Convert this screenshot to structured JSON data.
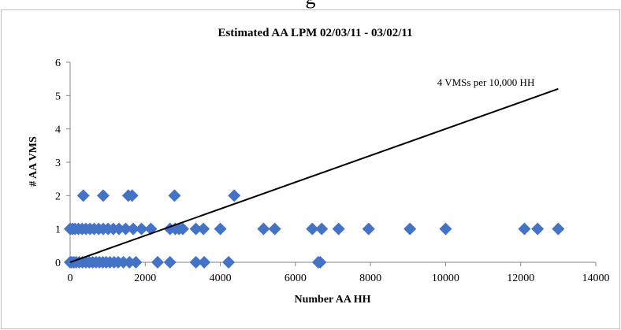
{
  "top_clip_text": "g",
  "chart_data": {
    "type": "scatter",
    "title": "Estimated AA LPM 02/03/11 - 03/02/11",
    "xlabel": "Number AA HH",
    "ylabel": "# AA VMS",
    "xlim": [
      0,
      14000
    ],
    "ylim": [
      0,
      6
    ],
    "x_ticks": [
      0,
      2000,
      4000,
      6000,
      8000,
      10000,
      12000,
      14000
    ],
    "y_ticks": [
      0,
      1,
      2,
      3,
      4,
      5,
      6
    ],
    "grid": false,
    "legend": "none",
    "marker": "diamond",
    "marker_color": "#4472C4",
    "series": [
      {
        "points": [
          [
            0,
            0
          ],
          [
            40,
            0
          ],
          [
            100,
            0
          ],
          [
            160,
            0
          ],
          [
            240,
            0
          ],
          [
            330,
            0
          ],
          [
            420,
            0
          ],
          [
            510,
            0
          ],
          [
            600,
            0
          ],
          [
            690,
            0
          ],
          [
            780,
            0
          ],
          [
            870,
            0
          ],
          [
            960,
            0
          ],
          [
            1060,
            0
          ],
          [
            1170,
            0
          ],
          [
            1280,
            0
          ],
          [
            1420,
            0
          ],
          [
            1580,
            0
          ],
          [
            1750,
            0
          ],
          [
            2330,
            0
          ],
          [
            2660,
            0
          ],
          [
            3350,
            0
          ],
          [
            3570,
            0
          ],
          [
            4220,
            0
          ],
          [
            6610,
            0
          ],
          [
            6660,
            0
          ],
          [
            0,
            1
          ],
          [
            60,
            1
          ],
          [
            130,
            1
          ],
          [
            220,
            1
          ],
          [
            320,
            1
          ],
          [
            420,
            1
          ],
          [
            530,
            1
          ],
          [
            640,
            1
          ],
          [
            760,
            1
          ],
          [
            880,
            1
          ],
          [
            1010,
            1
          ],
          [
            1150,
            1
          ],
          [
            1300,
            1
          ],
          [
            1480,
            1
          ],
          [
            1680,
            1
          ],
          [
            1900,
            1
          ],
          [
            2150,
            1
          ],
          [
            2660,
            1
          ],
          [
            2800,
            1
          ],
          [
            2900,
            1
          ],
          [
            3000,
            1
          ],
          [
            3350,
            1
          ],
          [
            3550,
            1
          ],
          [
            4000,
            1
          ],
          [
            5150,
            1
          ],
          [
            5450,
            1
          ],
          [
            6450,
            1
          ],
          [
            6700,
            1
          ],
          [
            7150,
            1
          ],
          [
            7950,
            1
          ],
          [
            9050,
            1
          ],
          [
            10000,
            1
          ],
          [
            12100,
            1
          ],
          [
            12450,
            1
          ],
          [
            13000,
            1
          ],
          [
            350,
            2
          ],
          [
            880,
            2
          ],
          [
            1550,
            2
          ],
          [
            1650,
            2
          ],
          [
            2780,
            2
          ],
          [
            4370,
            2
          ]
        ]
      }
    ],
    "trendline": {
      "label": "4 VMSs per 10,000 HH",
      "slope_per_household": 0.0004,
      "x_start": 0,
      "x_end": 13000
    }
  }
}
